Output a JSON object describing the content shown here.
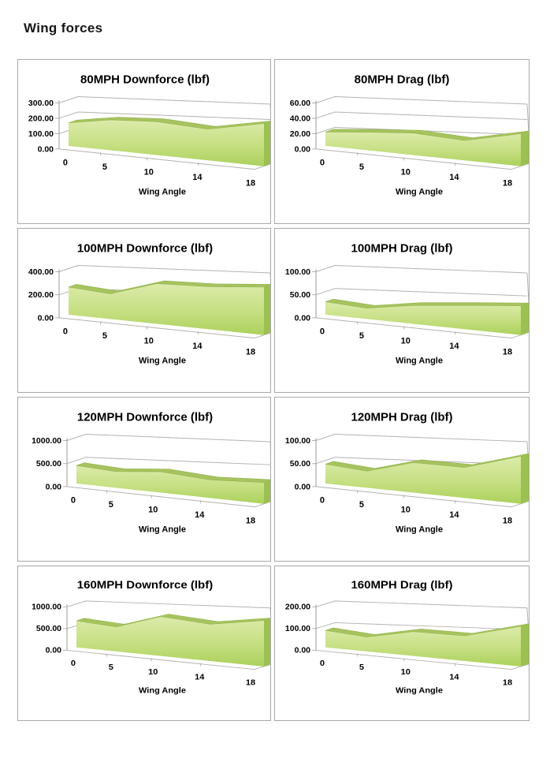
{
  "page": {
    "title": "Wing forces"
  },
  "colors": {
    "face_top": "#dcebaa",
    "face_mid": "#c6df82",
    "face_bottom": "#abd15c",
    "ribbon": "#a6c35f",
    "ribbon_edge": "#93b24c",
    "side": "#9cc051",
    "grid_line": "#b2b2b2",
    "axis_line": "#9b9b9b",
    "panel_border": "#a9a9a9",
    "text": "#000000"
  },
  "chart_data": [
    {
      "type": "area",
      "title": "80MPH Downforce (lbf)",
      "xlabel": "Wing Angle",
      "x": [
        0,
        5,
        10,
        14,
        18
      ],
      "values": [
        150,
        185,
        190,
        165,
        210
      ],
      "ymax": 300,
      "yticks": [
        0,
        100,
        200,
        300
      ],
      "ytick_labels": [
        "0.00",
        "100.00",
        "200.00",
        "300.00"
      ],
      "ylim": [
        0,
        300
      ],
      "legend": false,
      "grid": true
    },
    {
      "type": "area",
      "title": "80MPH Drag (lbf)",
      "xlabel": "Wing Angle",
      "x": [
        0,
        5,
        10,
        14,
        18
      ],
      "values": [
        18,
        22,
        25,
        21,
        32
      ],
      "ymax": 60,
      "yticks": [
        0,
        20,
        40,
        60
      ],
      "ytick_labels": [
        "0.00",
        "20.00",
        "40.00",
        "60.00"
      ],
      "ylim": [
        0,
        60
      ],
      "legend": false,
      "grid": true
    },
    {
      "type": "area",
      "title": "100MPH Downforce (lbf)",
      "xlabel": "Wing Angle",
      "x": [
        0,
        5,
        10,
        14,
        18
      ],
      "values": [
        240,
        205,
        305,
        300,
        315
      ],
      "ymax": 400,
      "yticks": [
        0,
        200,
        400
      ],
      "ytick_labels": [
        "0.00",
        "200.00",
        "400.00"
      ],
      "ylim": [
        0,
        400
      ],
      "legend": false,
      "grid": true
    },
    {
      "type": "area",
      "title": "100MPH Drag (lbf)",
      "xlabel": "Wing Angle",
      "x": [
        0,
        5,
        10,
        14,
        18
      ],
      "values": [
        28,
        22,
        35,
        42,
        48
      ],
      "ymax": 100,
      "yticks": [
        0,
        50,
        100
      ],
      "ytick_labels": [
        "0.00",
        "50.00",
        "100.00"
      ],
      "ylim": [
        0,
        100
      ],
      "legend": false,
      "grid": true
    },
    {
      "type": "area",
      "title": "120MPH Downforce (lbf)",
      "xlabel": "Wing Angle",
      "x": [
        0,
        5,
        10,
        14,
        18
      ],
      "values": [
        390,
        330,
        395,
        320,
        350
      ],
      "ymax": 1000,
      "yticks": [
        0,
        500,
        1000
      ],
      "ytick_labels": [
        "0.00",
        "500.00",
        "1000.00"
      ],
      "ylim": [
        0,
        1000
      ],
      "legend": false,
      "grid": true
    },
    {
      "type": "area",
      "title": "120MPH Drag (lbf)",
      "xlabel": "Wing Angle",
      "x": [
        0,
        5,
        10,
        14,
        18
      ],
      "values": [
        42,
        34,
        57,
        54,
        78
      ],
      "ymax": 100,
      "yticks": [
        0,
        50,
        100
      ],
      "ytick_labels": [
        "0.00",
        "50.00",
        "100.00"
      ],
      "ylim": [
        0,
        100
      ],
      "legend": false,
      "grid": true
    },
    {
      "type": "area",
      "title": "160MPH Downforce (lbf)",
      "xlabel": "Wing Angle",
      "x": [
        0,
        5,
        10,
        14,
        18
      ],
      "values": [
        610,
        530,
        790,
        690,
        800
      ],
      "ymax": 1000,
      "yticks": [
        0,
        500,
        1000
      ],
      "ytick_labels": [
        "0.00",
        "500.00",
        "1000.00"
      ],
      "ylim": [
        0,
        1000
      ],
      "legend": false,
      "grid": true
    },
    {
      "type": "area",
      "title": "160MPH Drag (lbf)",
      "xlabel": "Wing Angle",
      "x": [
        0,
        5,
        10,
        14,
        18
      ],
      "values": [
        78,
        62,
        98,
        94,
        140
      ],
      "ymax": 200,
      "yticks": [
        0,
        100,
        200
      ],
      "ytick_labels": [
        "0.00",
        "100.00",
        "200.00"
      ],
      "ylim": [
        0,
        200
      ],
      "legend": false,
      "grid": true
    }
  ]
}
